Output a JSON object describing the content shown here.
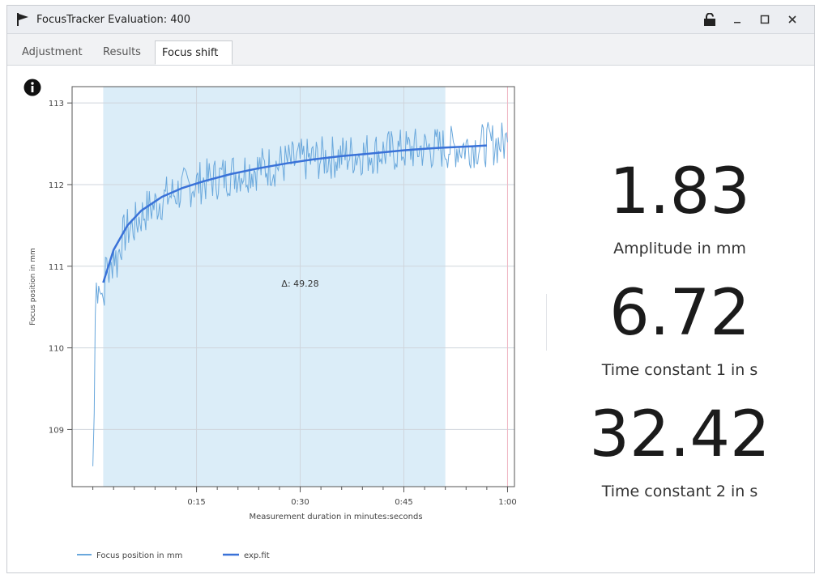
{
  "window": {
    "title": "FocusTracker Evaluation: 400",
    "icon": "flag-icon",
    "controls": [
      "lock-icon",
      "minimize-icon",
      "maximize-icon",
      "close-icon"
    ]
  },
  "tabs": [
    {
      "label": "Adjustment",
      "active": false
    },
    {
      "label": "Results",
      "active": false
    },
    {
      "label": "Focus shift",
      "active": true
    }
  ],
  "stats": [
    {
      "value": "1.83",
      "label": "Amplitude in mm"
    },
    {
      "value": "6.72",
      "label": "Time constant 1 in s"
    },
    {
      "value": "32.42",
      "label": "Time constant 2 in s"
    }
  ],
  "colors": {
    "highlight": "#dbedf8",
    "raw_series": "#6aa8dc",
    "fit_series": "#3a72d8",
    "marker_line": "#f2b6c4"
  },
  "chart_data": {
    "type": "line",
    "title": "",
    "xlabel": "Measurement duration in minutes:seconds",
    "ylabel": "Focus position in mm",
    "xlim": [
      -3,
      61
    ],
    "ylim": [
      108.3,
      113.2
    ],
    "x_ticks": [
      15,
      30,
      45,
      60
    ],
    "x_tick_labels": [
      "0:15",
      "0:30",
      "0:45",
      "1:00"
    ],
    "y_ticks": [
      109,
      110,
      111,
      112,
      113
    ],
    "y_tick_labels": [
      "109",
      "110",
      "111",
      "112",
      "113"
    ],
    "grid": true,
    "highlight_range": [
      1.5,
      51
    ],
    "annotation": {
      "text": "Δ: 49.28",
      "x": 30,
      "y": 110.75
    },
    "legend": {
      "placement": "bottom-left",
      "entries": [
        "Focus position in mm",
        "exp.fit"
      ]
    },
    "series": [
      {
        "name": "Focus position in mm",
        "x": [
          0,
          0.2,
          0.35,
          0.5,
          0.7,
          1,
          1.5,
          2,
          2.5,
          3,
          3.5,
          4,
          5,
          6,
          7,
          8,
          9,
          10,
          12,
          14,
          16,
          18,
          20,
          22,
          24,
          26,
          28,
          30,
          33,
          36,
          39,
          42,
          45,
          48,
          51,
          54,
          57,
          60
        ],
        "y": [
          108.55,
          109.2,
          110.4,
          110.8,
          110.55,
          110.9,
          110.6,
          111.05,
          110.85,
          111.2,
          111.05,
          111.3,
          111.45,
          111.5,
          111.62,
          111.7,
          111.75,
          111.82,
          111.9,
          111.98,
          112.04,
          112.08,
          112.13,
          112.17,
          112.2,
          112.23,
          112.26,
          112.29,
          112.32,
          112.35,
          112.38,
          112.4,
          112.42,
          112.44,
          112.45,
          112.47,
          112.49,
          112.52
        ]
      },
      {
        "name": "exp.fit",
        "x": [
          1.5,
          3,
          5,
          7,
          10,
          13,
          16,
          20,
          24,
          28,
          32,
          36,
          40,
          45,
          50,
          55,
          57
        ],
        "y": [
          110.8,
          111.2,
          111.5,
          111.68,
          111.85,
          111.96,
          112.04,
          112.13,
          112.2,
          112.26,
          112.31,
          112.35,
          112.38,
          112.42,
          112.45,
          112.47,
          112.48
        ]
      }
    ]
  }
}
